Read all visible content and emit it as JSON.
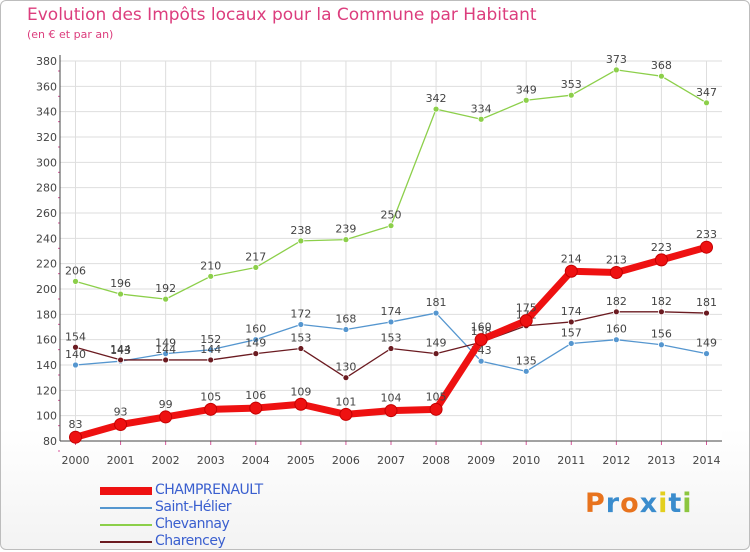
{
  "header": {
    "title": "Evolution des Impôts locaux pour la Commune par Habitant",
    "subtitle": "(en € et par an)"
  },
  "legend": [
    {
      "name": "CHAMPRENAULT",
      "color": "#ee1111"
    },
    {
      "name": "Saint-Hélier",
      "color": "#5596cf"
    },
    {
      "name": "Chevannay",
      "color": "#8ccf4a"
    },
    {
      "name": "Charencey",
      "color": "#6b1b21"
    }
  ],
  "logo": {
    "text": "Proxiti",
    "colors": [
      "#e8731d",
      "#3a8ccd",
      "#e8731d",
      "#3a8ccd",
      "#e3cf1e",
      "#3a8ccd",
      "#8cc63f"
    ]
  },
  "chart_data": {
    "type": "line",
    "title": "Evolution des Impôts locaux pour la Commune par Habitant",
    "subtitle": "(en € et par an)",
    "x": [
      "2000",
      "2001",
      "2002",
      "2003",
      "2004",
      "2005",
      "2006",
      "2007",
      "2008",
      "2009",
      "2010",
      "2011",
      "2012",
      "2013",
      "2014"
    ],
    "ylim": [
      80,
      380
    ],
    "yticks": [
      80,
      100,
      120,
      140,
      160,
      180,
      200,
      220,
      240,
      260,
      280,
      300,
      320,
      340,
      360,
      380
    ],
    "grid": true,
    "legend_position": "bottom-left",
    "series": [
      {
        "name": "Chevannay",
        "color": "#8ccf4a",
        "values": [
          206,
          196,
          192,
          210,
          217,
          238,
          239,
          250,
          342,
          334,
          349,
          353,
          373,
          368,
          347
        ]
      },
      {
        "name": "Saint-Hélier",
        "color": "#5596cf",
        "values": [
          140,
          143,
          149,
          152,
          160,
          172,
          168,
          174,
          181,
          143,
          135,
          157,
          160,
          156,
          149
        ]
      },
      {
        "name": "Charencey",
        "color": "#6b1b21",
        "values": [
          154,
          144,
          144,
          144,
          149,
          153,
          130,
          153,
          149,
          158,
          171,
          174,
          182,
          182,
          181
        ]
      },
      {
        "name": "CHAMPRENAULT",
        "color": "#ee1111",
        "values": [
          83,
          93,
          99,
          105,
          106,
          109,
          101,
          104,
          105,
          160,
          175,
          214,
          213,
          223,
          233
        ]
      }
    ]
  }
}
